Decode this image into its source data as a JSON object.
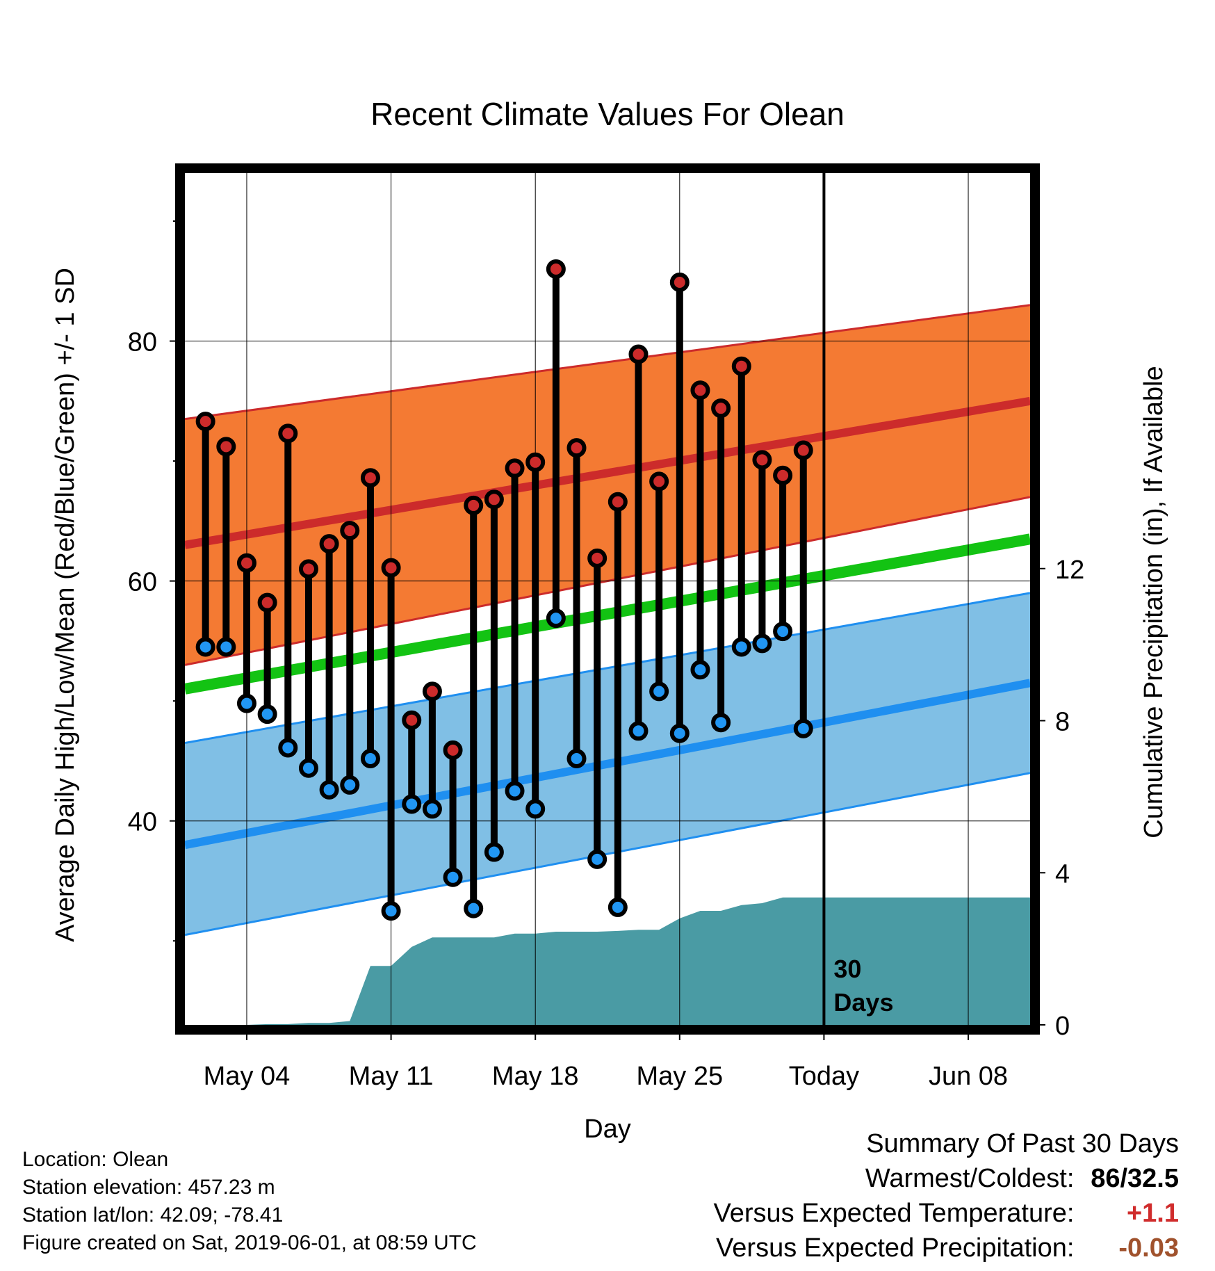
{
  "colors": {
    "high_band": "#f47a33",
    "high_mean": "#cc2b2b",
    "low_band": "#80bfe5",
    "low_mean": "#1f8ff0",
    "mean_line": "#13c313",
    "precip_fill": "#4a9ba4",
    "high_marker": "#cc2b2b",
    "low_marker": "#2196f3",
    "warm_anomaly": "#d02c2c",
    "precip_anomaly": "#a0522d"
  },
  "chart_data": {
    "type": "line",
    "title": "Recent Climate Values For Olean",
    "xlabel": "Day",
    "ylabel": "Average Daily High/Low/Mean (Red/Blue/Green) +/- 1 SD",
    "ylabel_right": "Cumulative Precipitation (in), If Available",
    "ylim": [
      23,
      94
    ],
    "y2lim": [
      0,
      22.4
    ],
    "xlim": [
      "2019-05-01",
      "2019-06-11"
    ],
    "x_ticks": [
      {
        "date": "2019-05-04",
        "label": "May 04"
      },
      {
        "date": "2019-05-11",
        "label": "May 11"
      },
      {
        "date": "2019-05-18",
        "label": "May 18"
      },
      {
        "date": "2019-05-25",
        "label": "May 25"
      },
      {
        "date": "2019-06-01",
        "label": "Today"
      },
      {
        "date": "2019-06-08",
        "label": "Jun 08"
      }
    ],
    "y_ticks": [
      40,
      60,
      80
    ],
    "y_minor_ticks": [
      30,
      50,
      70,
      90
    ],
    "y2_ticks": [
      0,
      4,
      8,
      12
    ],
    "today_marker": {
      "date": "2019-06-01",
      "label_line1": "30",
      "label_line2": "Days"
    },
    "normals": {
      "dates": [
        "2019-05-01",
        "2019-06-11"
      ],
      "high_mean": [
        63,
        75
      ],
      "high_upper": [
        73.5,
        83
      ],
      "high_lower": [
        53,
        67
      ],
      "low_mean": [
        38,
        51.5
      ],
      "low_upper": [
        46.5,
        59
      ],
      "low_lower": [
        30.5,
        44
      ],
      "mean": [
        51,
        63.5
      ]
    },
    "daily": {
      "dates": [
        "2019-05-02",
        "2019-05-03",
        "2019-05-04",
        "2019-05-05",
        "2019-05-06",
        "2019-05-07",
        "2019-05-08",
        "2019-05-09",
        "2019-05-10",
        "2019-05-11",
        "2019-05-12",
        "2019-05-13",
        "2019-05-14",
        "2019-05-15",
        "2019-05-16",
        "2019-05-17",
        "2019-05-18",
        "2019-05-19",
        "2019-05-20",
        "2019-05-21",
        "2019-05-22",
        "2019-05-23",
        "2019-05-24",
        "2019-05-25",
        "2019-05-26",
        "2019-05-27",
        "2019-05-28",
        "2019-05-29",
        "2019-05-30",
        "2019-05-31"
      ],
      "high": [
        73.3,
        71.2,
        61.5,
        58.2,
        72.3,
        61,
        63.1,
        64.2,
        68.6,
        61.1,
        48.4,
        50.8,
        45.9,
        66.3,
        66.8,
        69.4,
        69.9,
        86,
        71.1,
        61.9,
        66.6,
        78.9,
        68.3,
        84.9,
        75.9,
        74.4,
        77.9,
        70.1,
        68.8,
        70.9
      ],
      "low": [
        54.5,
        54.5,
        49.8,
        48.9,
        46.1,
        44.4,
        42.6,
        43,
        45.2,
        32.5,
        41.4,
        41,
        35.3,
        32.7,
        37.4,
        42.5,
        41,
        56.9,
        45.2,
        36.8,
        32.8,
        47.5,
        50.8,
        47.3,
        52.6,
        48.2,
        54.5,
        54.8,
        55.8,
        47.7
      ]
    },
    "precip": {
      "dates": [
        "2019-05-02",
        "2019-05-03",
        "2019-05-04",
        "2019-05-05",
        "2019-05-06",
        "2019-05-07",
        "2019-05-08",
        "2019-05-09",
        "2019-05-10",
        "2019-05-11",
        "2019-05-12",
        "2019-05-13",
        "2019-05-14",
        "2019-05-15",
        "2019-05-16",
        "2019-05-17",
        "2019-05-18",
        "2019-05-19",
        "2019-05-20",
        "2019-05-21",
        "2019-05-22",
        "2019-05-23",
        "2019-05-24",
        "2019-05-25",
        "2019-05-26",
        "2019-05-27",
        "2019-05-28",
        "2019-05-29",
        "2019-05-30",
        "2019-05-31",
        "2019-06-01",
        "2019-06-11"
      ],
      "cumulative": [
        0,
        0,
        0,
        0.02,
        0.02,
        0.05,
        0.05,
        0.1,
        1.55,
        1.55,
        2.05,
        2.3,
        2.3,
        2.3,
        2.3,
        2.4,
        2.4,
        2.45,
        2.45,
        2.45,
        2.47,
        2.5,
        2.5,
        2.8,
        3.0,
        3.0,
        3.15,
        3.2,
        3.35,
        3.35,
        3.35,
        3.35
      ]
    }
  },
  "footer": {
    "location": "Location: Olean",
    "elevation": "Station elevation: 457.23 m",
    "latlon": "Station lat/lon: 42.09; -78.41",
    "created": "Figure created on Sat, 2019-06-01, at 08:59 UTC"
  },
  "summary": {
    "title": "Summary Of Past 30 Days",
    "warmest_coldest_label": "Warmest/Coldest:",
    "warmest_coldest_value": "86/32.5",
    "temp_label": "Versus Expected Temperature:",
    "temp_value": "+1.1",
    "precip_label": "Versus Expected Precipitation:",
    "precip_value": "-0.03"
  }
}
